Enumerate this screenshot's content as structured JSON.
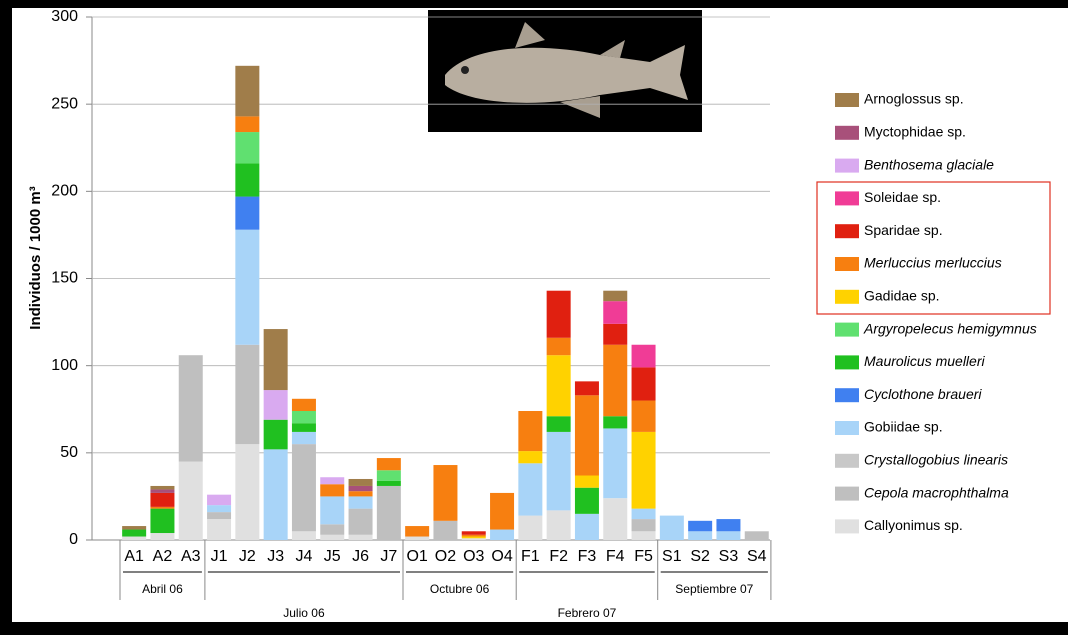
{
  "chart_data": {
    "type": "stacked-bar",
    "y_label": "Individuos / 1000 m³",
    "ylim": [
      0,
      300
    ],
    "yticks": [
      0,
      50,
      100,
      150,
      200,
      250,
      300
    ],
    "grid": true,
    "groups": [
      {
        "label": "Abril 06",
        "categories": [
          "A1",
          "A2",
          "A3"
        ]
      },
      {
        "label": "Julio 06",
        "categories": [
          "J1",
          "J2",
          "J3",
          "J4",
          "J5",
          "J6",
          "J7"
        ]
      },
      {
        "label": "Octubre 06",
        "categories": [
          "O1",
          "O2",
          "O3",
          "O4"
        ]
      },
      {
        "label": "Febrero 07",
        "categories": [
          "F1",
          "F2",
          "F3",
          "F4",
          "F5"
        ]
      },
      {
        "label": "Septiembre 07",
        "categories": [
          "S1",
          "S2",
          "S3",
          "S4"
        ]
      }
    ],
    "series": [
      {
        "name": "Arnoglossus sp.",
        "color": "#a07d4a",
        "italic": false,
        "values": [
          2,
          2,
          0,
          0,
          29,
          35,
          0,
          0,
          4,
          0,
          0,
          0,
          0,
          0,
          0,
          0,
          0,
          6,
          0,
          0,
          0,
          0,
          0
        ]
      },
      {
        "name": "Myctophidae sp.",
        "color": "#a8507a",
        "italic": false,
        "values": [
          0,
          2,
          0,
          0,
          0,
          0,
          0,
          0,
          3,
          0,
          0,
          0,
          0,
          0,
          0,
          0,
          0,
          0,
          0,
          0,
          0,
          0,
          0
        ]
      },
      {
        "name": "Benthosema glaciale",
        "color": "#d9aaf0",
        "italic": true,
        "values": [
          0,
          0,
          0,
          6,
          0,
          17,
          0,
          4,
          0,
          0,
          0,
          0,
          0,
          0,
          0,
          0,
          0,
          0,
          0,
          0,
          0,
          0,
          0
        ]
      },
      {
        "name": "Soleidae sp.",
        "color": "#f03c96",
        "italic": false,
        "values": [
          0,
          0,
          0,
          0,
          0,
          0,
          0,
          0,
          0,
          0,
          0,
          0,
          0,
          0,
          0,
          0,
          0,
          13,
          13,
          0,
          0,
          0,
          0
        ]
      },
      {
        "name": "Sparidae sp.",
        "color": "#e02010",
        "italic": false,
        "values": [
          0,
          8,
          0,
          0,
          0,
          0,
          0,
          0,
          0,
          0,
          0,
          0,
          2,
          0,
          0,
          27,
          8,
          12,
          19,
          0,
          0,
          0,
          0
        ]
      },
      {
        "name": "Merluccius merluccius",
        "color": "#f77f10",
        "italic": true,
        "values": [
          0,
          1,
          0,
          0,
          9,
          0,
          7,
          7,
          3,
          7,
          6,
          32,
          1,
          21,
          23,
          10,
          46,
          41,
          18,
          0,
          0,
          0,
          0
        ]
      },
      {
        "name": "Gadidae sp.",
        "color": "#ffd200",
        "italic": false,
        "values": [
          0,
          0,
          0,
          0,
          0,
          0,
          0,
          0,
          0,
          0,
          0,
          0,
          1,
          0,
          7,
          35,
          7,
          0,
          44,
          0,
          0,
          0,
          0
        ]
      },
      {
        "name": "Argyropelecus hemigymnus",
        "color": "#60e070",
        "italic": true,
        "values": [
          0,
          0,
          0,
          0,
          18,
          0,
          7,
          0,
          0,
          6,
          0,
          0,
          0,
          0,
          0,
          0,
          0,
          0,
          0,
          0,
          0,
          0,
          0
        ]
      },
      {
        "name": "Maurolicus muelleri",
        "color": "#20c020",
        "italic": true,
        "values": [
          4,
          14,
          0,
          0,
          19,
          17,
          5,
          0,
          0,
          3,
          0,
          0,
          0,
          0,
          0,
          9,
          15,
          7,
          0,
          0,
          0,
          0,
          0
        ]
      },
      {
        "name": "Cyclothone braueri",
        "color": "#4080f0",
        "italic": true,
        "values": [
          0,
          0,
          0,
          0,
          19,
          0,
          0,
          0,
          0,
          0,
          0,
          0,
          0,
          0,
          0,
          0,
          0,
          0,
          0,
          0,
          6,
          7,
          0
        ]
      },
      {
        "name": "Gobiidae sp.",
        "color": "#a8d4f8",
        "italic": false,
        "values": [
          0,
          0,
          0,
          4,
          66,
          52,
          7,
          16,
          7,
          0,
          0,
          0,
          0,
          6,
          30,
          45,
          15,
          40,
          6,
          14,
          5,
          5,
          0
        ]
      },
      {
        "name": "Crystallogobius linearis",
        "color": "#c8c8c8",
        "italic": true,
        "values": [
          0,
          0,
          0,
          0,
          0,
          0,
          0,
          0,
          0,
          0,
          0,
          0,
          0,
          0,
          0,
          0,
          0,
          0,
          0,
          0,
          0,
          0,
          0
        ]
      },
      {
        "name": "Cepola macrophthalma",
        "color": "#bfbfbf",
        "italic": true,
        "values": [
          0,
          0,
          61,
          4,
          57,
          0,
          50,
          6,
          15,
          31,
          0,
          11,
          0,
          0,
          0,
          0,
          0,
          0,
          7,
          0,
          0,
          0,
          5
        ]
      },
      {
        "name": "Callyonimus sp.",
        "color": "#e0e0e0",
        "italic": false,
        "values": [
          2,
          4,
          45,
          12,
          55,
          0,
          5,
          3,
          3,
          0,
          2,
          0,
          1,
          0,
          14,
          17,
          0,
          24,
          5,
          0,
          0,
          0,
          0
        ]
      }
    ]
  }
}
